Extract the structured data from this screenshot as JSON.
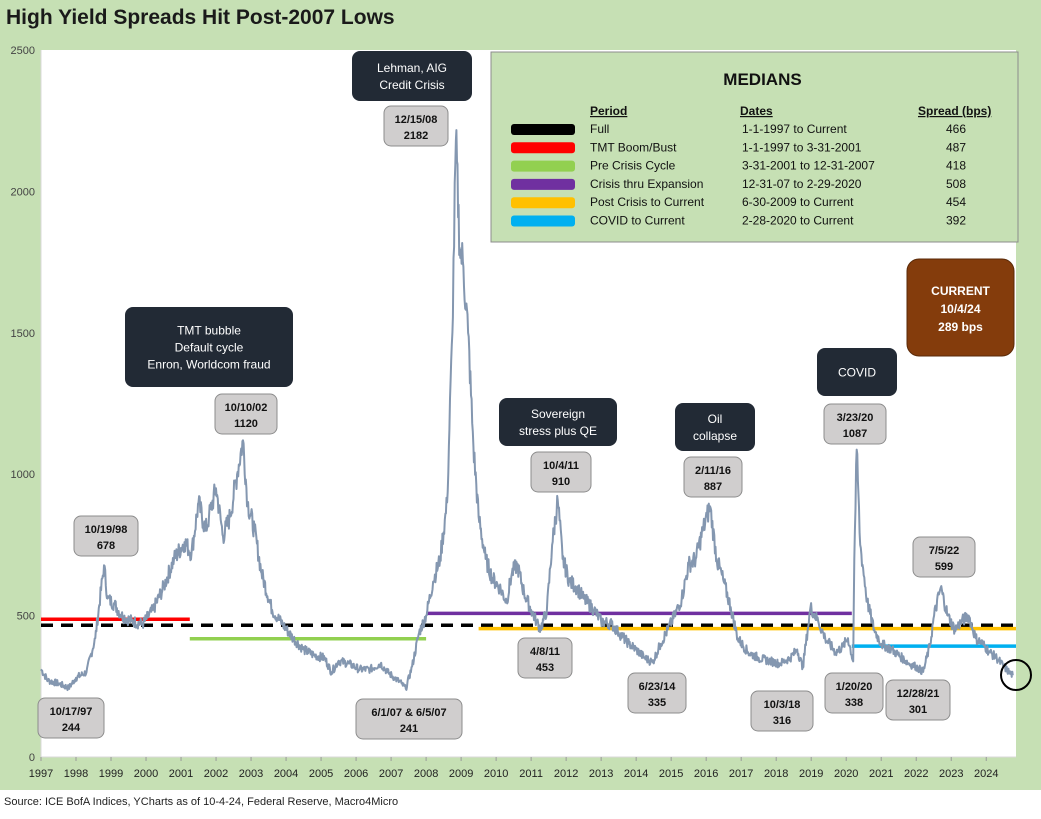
{
  "title": "High Yield Spreads Hit Post-2007 Lows",
  "source": "Source: ICE BofA Indices, YCharts as of 10-4-24, Federal Reserve, Macro4Micro",
  "colors": {
    "frame": "#c6e0b4",
    "line": "#8497b0",
    "callout_bg": "#222a35",
    "annot_bg": "#d0cece",
    "legend_bg": "#c6e0b4",
    "current_bg": "#843c0c"
  },
  "chart_data": {
    "type": "line",
    "title": "High Yield Spreads Hit Post-2007 Lows",
    "xlabel": "",
    "ylabel": "",
    "xlim": [
      1997.0,
      2024.85
    ],
    "ylim": [
      0,
      2500
    ],
    "grid": false,
    "y_ticks": [
      "0",
      "500",
      "1000",
      "1500",
      "2000",
      "2500"
    ],
    "x_ticks": [
      "1997",
      "1998",
      "1999",
      "2000",
      "2001",
      "2002",
      "2003",
      "2004",
      "2005",
      "2006",
      "2007",
      "2008",
      "2009",
      "2010",
      "2011",
      "2012",
      "2013",
      "2014",
      "2015",
      "2016",
      "2017",
      "2018",
      "2019",
      "2020",
      "2021",
      "2022",
      "2023",
      "2024"
    ],
    "series": [
      {
        "x": [
          1997.0,
          1997.2,
          1997.5,
          1997.79,
          1998.0,
          1998.3,
          1998.55,
          1998.8,
          1998.9,
          1999.1,
          1999.3,
          1999.6,
          1999.9,
          2000.2,
          2000.5,
          2000.8,
          2001.1,
          2001.3,
          2001.5,
          2001.7,
          2001.8,
          2002.0,
          2002.2,
          2002.4,
          2002.6,
          2002.77,
          2002.9,
          2003.1,
          2003.3,
          2003.6,
          2003.9,
          2004.2,
          2004.5,
          2004.8,
          2005.1,
          2005.3,
          2005.5,
          2005.8,
          2006.1,
          2006.4,
          2006.7,
          2006.9,
          2007.1,
          2007.3,
          2007.42,
          2007.6,
          2007.8,
          2008.0,
          2008.2,
          2008.4,
          2008.6,
          2008.75,
          2008.85,
          2008.96,
          2009.05,
          2009.2,
          2009.35,
          2009.5,
          2009.7,
          2009.9,
          2010.1,
          2010.3,
          2010.45,
          2010.6,
          2010.8,
          2011.0,
          2011.15,
          2011.27,
          2011.45,
          2011.6,
          2011.76,
          2011.9,
          2012.1,
          2012.3,
          2012.5,
          2012.8,
          2013.0,
          2013.3,
          2013.5,
          2013.8,
          2014.0,
          2014.25,
          2014.47,
          2014.7,
          2014.9,
          2015.1,
          2015.3,
          2015.5,
          2015.7,
          2015.9,
          2016.02,
          2016.11,
          2016.3,
          2016.5,
          2016.7,
          2016.9,
          2017.2,
          2017.5,
          2017.8,
          2018.1,
          2018.4,
          2018.6,
          2018.76,
          2018.9,
          2018.98,
          2019.2,
          2019.4,
          2019.7,
          2019.9,
          2020.05,
          2020.2,
          2020.23,
          2020.3,
          2020.4,
          2020.6,
          2020.8,
          2021.0,
          2021.3,
          2021.6,
          2021.8,
          2021.99,
          2022.2,
          2022.4,
          2022.51,
          2022.7,
          2022.9,
          2023.1,
          2023.3,
          2023.5,
          2023.7,
          2023.9,
          2024.1,
          2024.3,
          2024.5,
          2024.65,
          2024.76
        ],
        "y": [
          310,
          270,
          260,
          244,
          280,
          300,
          420,
          678,
          560,
          540,
          500,
          480,
          470,
          520,
          600,
          700,
          760,
          720,
          900,
          800,
          850,
          950,
          780,
          850,
          1000,
          1120,
          900,
          800,
          650,
          520,
          470,
          420,
          380,
          360,
          350,
          300,
          340,
          330,
          310,
          310,
          330,
          300,
          280,
          260,
          241,
          320,
          440,
          500,
          620,
          700,
          900,
          1500,
          2182,
          1800,
          1750,
          1500,
          1100,
          850,
          700,
          630,
          600,
          550,
          650,
          680,
          580,
          520,
          480,
          453,
          520,
          750,
          910,
          700,
          620,
          600,
          560,
          520,
          480,
          470,
          440,
          400,
          380,
          350,
          335,
          400,
          450,
          500,
          560,
          680,
          700,
          800,
          850,
          887,
          700,
          620,
          530,
          420,
          370,
          350,
          340,
          330,
          350,
          380,
          316,
          450,
          530,
          480,
          420,
          370,
          390,
          420,
          338,
          700,
          1087,
          750,
          550,
          450,
          400,
          380,
          350,
          330,
          320,
          301,
          400,
          500,
          599,
          500,
          450,
          480,
          500,
          420,
          400,
          370,
          350,
          320,
          300,
          289
        ]
      }
    ],
    "medians": {
      "title": "MEDIANS",
      "headers": [
        "Period",
        "Dates",
        "Spread (bps)"
      ],
      "rows": [
        {
          "period": "Full",
          "dates": "1-1-1997 to Current",
          "spread": "466",
          "value": 466,
          "start": 1997.0,
          "end": 2024.85,
          "color": "#000000",
          "dashed": true
        },
        {
          "period": "TMT Boom/Bust",
          "dates": "1-1-1997 to 3-31-2001",
          "spread": "487",
          "value": 487,
          "start": 1997.0,
          "end": 2001.25,
          "color": "#ff0000",
          "dashed": false
        },
        {
          "period": "Pre Crisis Cycle",
          "dates": "3-31-2001 to 12-31-2007",
          "spread": "418",
          "value": 418,
          "start": 2001.25,
          "end": 2008.0,
          "color": "#92d050",
          "dashed": false
        },
        {
          "period": "Crisis thru Expansion",
          "dates": "12-31-07 to 2-29-2020",
          "spread": "508",
          "value": 508,
          "start": 2008.0,
          "end": 2020.16,
          "color": "#7030a0",
          "dashed": false
        },
        {
          "period": "Post Crisis to Current",
          "dates": "6-30-2009 to Current",
          "spread": "454",
          "value": 454,
          "start": 2009.5,
          "end": 2024.85,
          "color": "#ffc000",
          "dashed": false
        },
        {
          "period": "COVID to Current",
          "dates": "2-28-2020 to Current",
          "spread": "392",
          "value": 392,
          "start": 2020.16,
          "end": 2024.85,
          "color": "#00b0f0",
          "dashed": false
        }
      ]
    },
    "callouts": [
      {
        "lines": [
          "TMT bubble",
          "Default cycle",
          "Enron, Worldcom fraud"
        ]
      },
      {
        "lines": [
          "Lehman, AIG",
          "Credit Crisis"
        ]
      },
      {
        "lines": [
          "Sovereign",
          "stress plus QE"
        ]
      },
      {
        "lines": [
          "Oil",
          "collapse"
        ]
      },
      {
        "lines": [
          "COVID"
        ]
      }
    ],
    "annotations": [
      {
        "date": "10/17/97",
        "value": "244"
      },
      {
        "date": "10/19/98",
        "value": "678"
      },
      {
        "date": "10/10/02",
        "value": "1120"
      },
      {
        "date": "6/1/07 & 6/5/07",
        "value": "241"
      },
      {
        "date": "12/15/08",
        "value": "2182"
      },
      {
        "date": "10/4/11",
        "value": "910"
      },
      {
        "date": "4/8/11",
        "value": "453"
      },
      {
        "date": "6/23/14",
        "value": "335"
      },
      {
        "date": "2/11/16",
        "value": "887"
      },
      {
        "date": "10/3/18",
        "value": "316"
      },
      {
        "date": "3/23/20",
        "value": "1087"
      },
      {
        "date": "1/20/20",
        "value": "338"
      },
      {
        "date": "12/28/21",
        "value": "301"
      },
      {
        "date": "7/5/22",
        "value": "599"
      }
    ],
    "current": {
      "lines": [
        "CURRENT",
        "10/4/24",
        "289  bps"
      ]
    }
  }
}
